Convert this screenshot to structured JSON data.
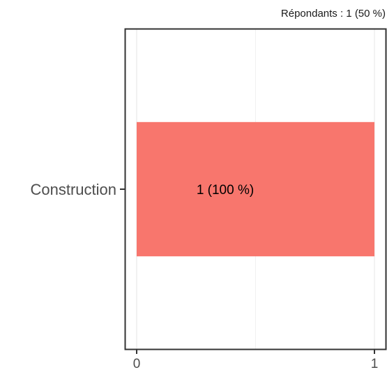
{
  "chart_data": {
    "type": "bar",
    "orientation": "horizontal",
    "subtitle": "Répondants : 1 (50 %)",
    "categories": [
      "Construction"
    ],
    "values": [
      1
    ],
    "data_labels": [
      "1 (100 %)"
    ],
    "xlim": [
      0,
      1
    ],
    "x_ticks": [
      0,
      1
    ],
    "x_tick_labels": [
      "0",
      "1"
    ],
    "grid": true,
    "bar_color": "#F8766D",
    "gridline_color": "#EBEBEB",
    "panel_border_color": "#333333"
  }
}
